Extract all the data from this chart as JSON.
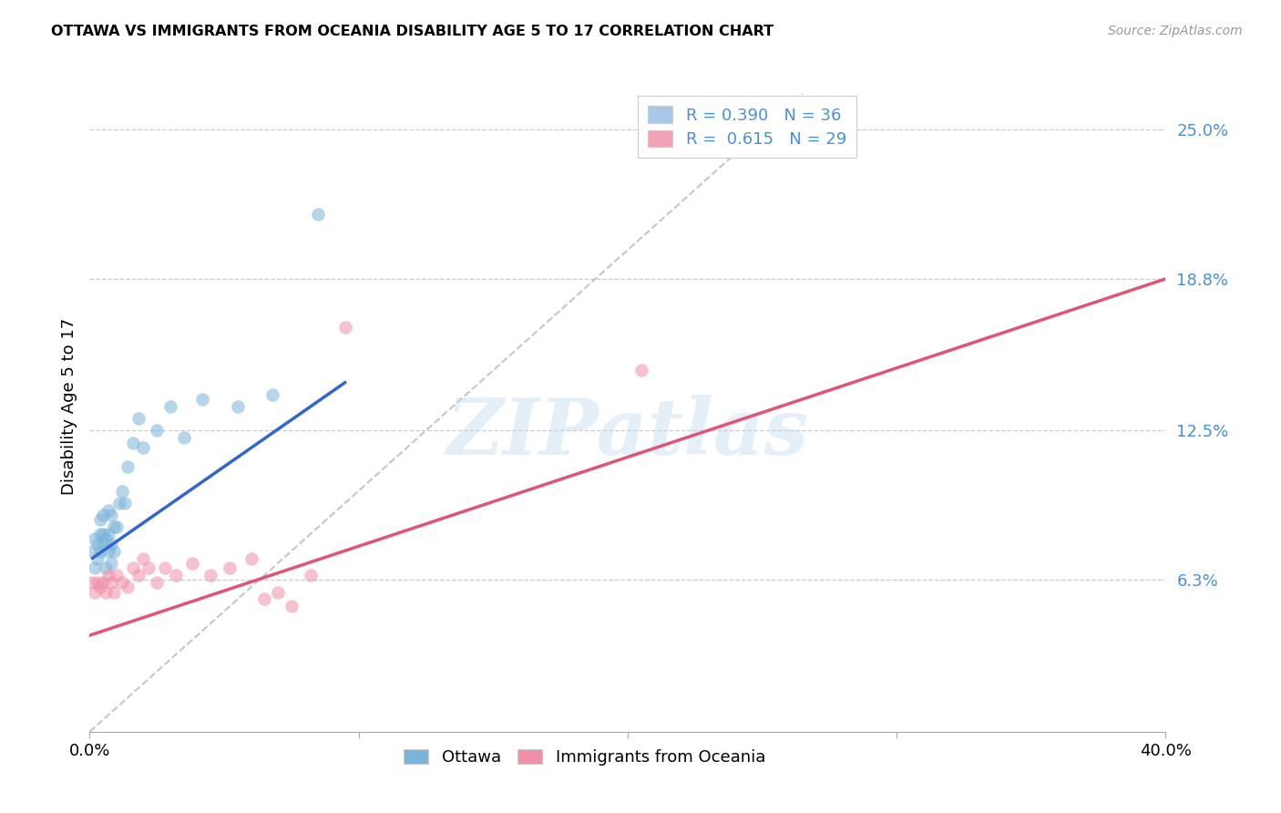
{
  "title": "OTTAWA VS IMMIGRANTS FROM OCEANIA DISABILITY AGE 5 TO 17 CORRELATION CHART",
  "source": "Source: ZipAtlas.com",
  "ylabel": "Disability Age 5 to 17",
  "xlim": [
    0.0,
    0.4
  ],
  "ylim": [
    0.0,
    0.27
  ],
  "yticks": [
    0.063,
    0.125,
    0.188,
    0.25
  ],
  "ytick_labels": [
    "6.3%",
    "12.5%",
    "18.8%",
    "25.0%"
  ],
  "xticks": [
    0.0,
    0.1,
    0.2,
    0.3,
    0.4
  ],
  "xtick_labels": [
    "0.0%",
    "",
    "",
    "",
    "40.0%"
  ],
  "legend_entries": [
    {
      "label": "R = 0.390   N = 36",
      "color": "#a8c8e8"
    },
    {
      "label": "R =  0.615   N = 29",
      "color": "#f4a0b5"
    }
  ],
  "watermark_text": "ZIPatlas",
  "ottawa_color": "#7ab4d8",
  "oceania_color": "#f090a8",
  "ottawa_line_color": "#3366cc",
  "oceania_line_color": "#e05575",
  "diagonal_color": "#b8b8b8",
  "ottawa_scatter_x": [
    0.001,
    0.002,
    0.002,
    0.003,
    0.003,
    0.004,
    0.004,
    0.004,
    0.005,
    0.005,
    0.005,
    0.006,
    0.006,
    0.007,
    0.007,
    0.007,
    0.008,
    0.008,
    0.008,
    0.009,
    0.009,
    0.01,
    0.011,
    0.012,
    0.013,
    0.014,
    0.016,
    0.018,
    0.02,
    0.025,
    0.03,
    0.035,
    0.042,
    0.055,
    0.068,
    0.085
  ],
  "ottawa_scatter_y": [
    0.075,
    0.068,
    0.08,
    0.072,
    0.078,
    0.075,
    0.082,
    0.088,
    0.078,
    0.082,
    0.09,
    0.068,
    0.08,
    0.075,
    0.082,
    0.092,
    0.07,
    0.078,
    0.09,
    0.075,
    0.085,
    0.085,
    0.095,
    0.1,
    0.095,
    0.11,
    0.12,
    0.13,
    0.118,
    0.125,
    0.135,
    0.122,
    0.138,
    0.135,
    0.14,
    0.215
  ],
  "oceania_scatter_x": [
    0.001,
    0.002,
    0.003,
    0.004,
    0.005,
    0.006,
    0.007,
    0.008,
    0.009,
    0.01,
    0.012,
    0.014,
    0.016,
    0.018,
    0.02,
    0.022,
    0.025,
    0.028,
    0.032,
    0.038,
    0.045,
    0.052,
    0.06,
    0.065,
    0.07,
    0.075,
    0.082,
    0.095,
    0.205
  ],
  "oceania_scatter_y": [
    0.062,
    0.058,
    0.062,
    0.06,
    0.062,
    0.058,
    0.065,
    0.062,
    0.058,
    0.065,
    0.062,
    0.06,
    0.068,
    0.065,
    0.072,
    0.068,
    0.062,
    0.068,
    0.065,
    0.07,
    0.065,
    0.068,
    0.072,
    0.055,
    0.058,
    0.052,
    0.065,
    0.168,
    0.15
  ],
  "ottawa_line": {
    "x0": 0.001,
    "y0": 0.072,
    "x1": 0.095,
    "y1": 0.145
  },
  "oceania_line": {
    "x0": 0.0,
    "y0": 0.04,
    "x1": 0.4,
    "y1": 0.188
  },
  "diagonal_line": {
    "x0": 0.0,
    "y0": 0.0,
    "x1": 0.265,
    "y1": 0.265
  }
}
